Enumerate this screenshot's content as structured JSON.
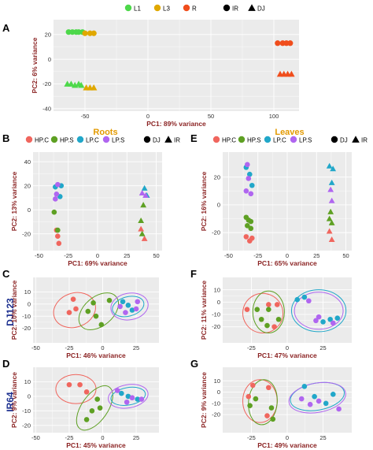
{
  "colors": {
    "L1": "#4dd84a",
    "L3": "#e0a800",
    "R": "#f04d1c",
    "HP.C": "#f0665e",
    "HP.S": "#5ea023",
    "LP.C": "#21a7c9",
    "LP.S": "#b066f0",
    "panel_bg": "#ebebeb",
    "grid": "#ffffff",
    "axis_title": "#8b2323",
    "group_title": "#e39a00",
    "side_label": "#1b2f8f"
  },
  "legend_A": {
    "items": [
      {
        "key": "L1",
        "label": "L1",
        "shape": "circle"
      },
      {
        "key": "L3",
        "label": "L3",
        "shape": "circle"
      },
      {
        "key": "R",
        "label": "R",
        "shape": "circle"
      },
      {
        "key": "IR",
        "label": "IR",
        "shape": "circle"
      },
      {
        "key": "DJ",
        "label": "DJ",
        "shape": "triangle"
      }
    ]
  },
  "legend_BE": {
    "items": [
      {
        "key": "HP.C",
        "label": "HP.C",
        "shape": "circle"
      },
      {
        "key": "HP.S",
        "label": "HP.S",
        "shape": "circle"
      },
      {
        "key": "LP.C",
        "label": "LP.C",
        "shape": "circle"
      },
      {
        "key": "LP.S",
        "label": "LP.S",
        "shape": "circle"
      },
      {
        "key": "DJ",
        "label": "DJ",
        "shape": "circle"
      },
      {
        "key": "IR",
        "label": "IR",
        "shape": "triangle"
      }
    ]
  },
  "groups": {
    "roots": "Roots",
    "leaves": "Leaves"
  },
  "side_labels": {
    "dj123": "DJ123",
    "ir64": "IR64"
  },
  "chart_data": [
    {
      "panel": "A",
      "type": "scatter",
      "xlabel": "PC1: 89% variance",
      "ylabel": "PC2: 6% variance",
      "xlim": [
        -75,
        120
      ],
      "ylim": [
        -42,
        32
      ],
      "xticks": [
        -50,
        0,
        50,
        100
      ],
      "yticks": [
        -40,
        -20,
        0,
        20
      ],
      "series": [
        {
          "name": "L1",
          "points": [
            [
              -63,
              22,
              "c"
            ],
            [
              -60,
              22,
              "c"
            ],
            [
              -57,
              22,
              "c"
            ],
            [
              -55,
              22,
              "c"
            ],
            [
              -52,
              22,
              "c"
            ],
            [
              -64,
              -20,
              "t"
            ],
            [
              -61,
              -20,
              "t"
            ],
            [
              -58,
              -21,
              "t"
            ],
            [
              -55,
              -20,
              "t"
            ],
            [
              -53,
              -21,
              "t"
            ]
          ]
        },
        {
          "name": "L3",
          "points": [
            [
              -50,
              21,
              "c"
            ],
            [
              -46,
              21,
              "c"
            ],
            [
              -43,
              21,
              "c"
            ],
            [
              -49,
              -23,
              "t"
            ],
            [
              -46,
              -23,
              "t"
            ],
            [
              -43,
              -23,
              "t"
            ]
          ]
        },
        {
          "name": "R",
          "points": [
            [
              103,
              13,
              "c"
            ],
            [
              107,
              13,
              "c"
            ],
            [
              110,
              13,
              "c"
            ],
            [
              113,
              13,
              "c"
            ],
            [
              105,
              -12,
              "t"
            ],
            [
              108,
              -12,
              "t"
            ],
            [
              111,
              -12,
              "t"
            ],
            [
              114,
              -12,
              "t"
            ]
          ]
        }
      ]
    },
    {
      "panel": "B",
      "type": "scatter",
      "xlabel": "PC1: 69% variance",
      "ylabel": "PC2: 13% variance",
      "xlim": [
        -55,
        55
      ],
      "ylim": [
        -34,
        48
      ],
      "xticks": [
        -50,
        -25,
        0,
        25,
        50
      ],
      "yticks": [
        -20,
        0,
        20,
        40
      ],
      "series": [
        {
          "name": "HP.C",
          "points": [
            [
              -35,
              -17,
              "c"
            ],
            [
              -34,
              -22,
              "c"
            ],
            [
              -33,
              -28,
              "c"
            ],
            [
              37,
              -16,
              "t"
            ],
            [
              40,
              -24,
              "t"
            ]
          ]
        },
        {
          "name": "HP.S",
          "points": [
            [
              -37,
              -2,
              "c"
            ],
            [
              -34,
              -17,
              "c"
            ],
            [
              37,
              -9,
              "t"
            ],
            [
              38,
              -20,
              "t"
            ],
            [
              39,
              4,
              "t"
            ]
          ]
        },
        {
          "name": "LP.C",
          "points": [
            [
              -36,
              19,
              "c"
            ],
            [
              -31,
              20,
              "c"
            ],
            [
              -32,
              11,
              "c"
            ],
            [
              40,
              18,
              "t"
            ],
            [
              42,
              12,
              "t"
            ]
          ]
        },
        {
          "name": "LP.S",
          "points": [
            [
              -34,
              21,
              "c"
            ],
            [
              -35,
              13,
              "c"
            ],
            [
              -36,
              9,
              "c"
            ],
            [
              38,
              14,
              "t"
            ],
            [
              41,
              12,
              "t"
            ]
          ]
        }
      ]
    },
    {
      "panel": "E",
      "type": "scatter",
      "xlabel": "PC1: 65% variance",
      "ylabel": "PC2: 16% variance",
      "xlim": [
        -55,
        55
      ],
      "ylim": [
        -33,
        38
      ],
      "xticks": [
        -50,
        -25,
        0,
        25,
        50
      ],
      "yticks": [
        -20,
        0,
        20
      ],
      "series": [
        {
          "name": "HP.C",
          "points": [
            [
              -35,
              -23,
              "c"
            ],
            [
              -32,
              -26,
              "c"
            ],
            [
              -30,
              -24,
              "c"
            ],
            [
              36,
              -19,
              "t"
            ],
            [
              38,
              -25,
              "t"
            ]
          ]
        },
        {
          "name": "HP.S",
          "points": [
            [
              -35,
              -9,
              "c"
            ],
            [
              -33,
              -11,
              "c"
            ],
            [
              -31,
              -12,
              "c"
            ],
            [
              -34,
              -15,
              "c"
            ],
            [
              -31,
              -17,
              "c"
            ],
            [
              36,
              -10,
              "t"
            ],
            [
              38,
              -13,
              "t"
            ],
            [
              37,
              -5,
              "t"
            ]
          ]
        },
        {
          "name": "LP.C",
          "points": [
            [
              -35,
              27,
              "c"
            ],
            [
              -32,
              22,
              "c"
            ],
            [
              -30,
              14,
              "c"
            ],
            [
              36,
              28,
              "t"
            ],
            [
              39,
              26,
              "t"
            ],
            [
              38,
              16,
              "t"
            ]
          ]
        },
        {
          "name": "LP.S",
          "points": [
            [
              -34,
              29,
              "c"
            ],
            [
              -33,
              19,
              "c"
            ],
            [
              -35,
              10,
              "c"
            ],
            [
              -31,
              8,
              "c"
            ],
            [
              37,
              11,
              "t"
            ],
            [
              38,
              3,
              "t"
            ]
          ]
        }
      ]
    },
    {
      "panel": "C",
      "type": "scatter",
      "xlabel": "PC1: 46% variance",
      "ylabel": "PC2: 10% variance",
      "xlim": [
        -52,
        42
      ],
      "ylim": [
        -32,
        22
      ],
      "xticks": [
        -50,
        -25,
        0,
        25
      ],
      "yticks": [
        -20,
        -10,
        0,
        10
      ],
      "series": [
        {
          "name": "HP.C",
          "points": [
            [
              -22,
              4
            ],
            [
              -20,
              -4
            ],
            [
              -25,
              -7
            ]
          ]
        },
        {
          "name": "HP.S",
          "points": [
            [
              -7,
              1
            ],
            [
              -1,
              -17
            ],
            [
              5,
              3
            ],
            [
              -11,
              -6
            ],
            [
              -5,
              -10
            ]
          ]
        },
        {
          "name": "LP.C",
          "points": [
            [
              15,
              2
            ],
            [
              19,
              -1
            ],
            [
              22,
              -5
            ]
          ]
        },
        {
          "name": "LP.S",
          "points": [
            [
              13,
              -2
            ],
            [
              17,
              -7
            ],
            [
              25,
              -4
            ],
            [
              26,
              2
            ]
          ]
        }
      ],
      "ellipses": [
        {
          "name": "HP.C",
          "cx": -21,
          "cy": -5,
          "rx": 16,
          "ry": 14,
          "rot": -20
        },
        {
          "name": "HP.S",
          "cx": -3,
          "cy": -6,
          "rx": 17,
          "ry": 12,
          "rot": -40
        },
        {
          "name": "LP.C",
          "cx": 19,
          "cy": -2,
          "rx": 12,
          "ry": 8,
          "rot": -15
        },
        {
          "name": "LP.S",
          "cx": 20,
          "cy": -2,
          "rx": 14,
          "ry": 11,
          "rot": -10
        }
      ]
    },
    {
      "panel": "F",
      "type": "scatter",
      "xlabel": "PC1: 47% variance",
      "ylabel": "PC2: 11% variance",
      "xlim": [
        -45,
        45
      ],
      "ylim": [
        -33,
        20
      ],
      "xticks": [
        -25,
        0,
        25
      ],
      "yticks": [
        -20,
        -10,
        0,
        10
      ],
      "series": [
        {
          "name": "HP.C",
          "points": [
            [
              -28,
              -6
            ],
            [
              -13,
              -2
            ],
            [
              -7,
              -2
            ],
            [
              -9,
              -20
            ]
          ]
        },
        {
          "name": "HP.S",
          "points": [
            [
              -18,
              -14
            ],
            [
              -13,
              -6
            ],
            [
              -6,
              -14
            ],
            [
              -21,
              -6
            ],
            [
              -14,
              -19
            ]
          ]
        },
        {
          "name": "LP.C",
          "points": [
            [
              7,
              2
            ],
            [
              12,
              4
            ],
            [
              25,
              -16
            ],
            [
              30,
              -14
            ],
            [
              35,
              -13
            ]
          ]
        },
        {
          "name": "LP.S",
          "points": [
            [
              15,
              1
            ],
            [
              20,
              -15
            ],
            [
              22,
              -12
            ],
            [
              32,
              -17
            ]
          ]
        }
      ],
      "ellipses": [
        {
          "name": "HP.C",
          "cx": -17,
          "cy": -9,
          "rx": 14,
          "ry": 16,
          "rot": 10
        },
        {
          "name": "HP.S",
          "cx": -13,
          "cy": -8,
          "rx": 11,
          "ry": 17,
          "rot": 0
        },
        {
          "name": "LP.C",
          "cx": 22,
          "cy": -7,
          "rx": 19,
          "ry": 17,
          "rot": 0
        },
        {
          "name": "LP.S",
          "cx": 22,
          "cy": -7,
          "rx": 17,
          "ry": 15,
          "rot": 0
        }
      ]
    },
    {
      "panel": "D",
      "type": "scatter",
      "xlabel": "PC1: 45% variance",
      "ylabel": "PC2: 9% variance",
      "xlim": [
        -52,
        42
      ],
      "ylim": [
        -25,
        20
      ],
      "xticks": [
        -50,
        -25,
        0,
        25
      ],
      "yticks": [
        -20,
        -10,
        0,
        10
      ],
      "series": [
        {
          "name": "HP.C",
          "points": [
            [
              -25,
              8
            ],
            [
              -17,
              8
            ],
            [
              -12,
              3
            ]
          ]
        },
        {
          "name": "HP.S",
          "points": [
            [
              -2,
              -8
            ],
            [
              -12,
              -16
            ],
            [
              -8,
              -10
            ],
            [
              -4,
              -2
            ]
          ]
        },
        {
          "name": "LP.C",
          "points": [
            [
              14,
              2
            ],
            [
              19,
              0
            ],
            [
              26,
              -2
            ]
          ]
        },
        {
          "name": "LP.S",
          "points": [
            [
              11,
              4
            ],
            [
              18,
              -4
            ],
            [
              22,
              -1
            ],
            [
              29,
              -2
            ]
          ]
        }
      ],
      "ellipses": [
        {
          "name": "HP.C",
          "cx": -20,
          "cy": 5,
          "rx": 15,
          "ry": 10,
          "rot": 0
        },
        {
          "name": "HP.S",
          "cx": -6,
          "cy": -8,
          "rx": 19,
          "ry": 9,
          "rot": -55
        },
        {
          "name": "LP.C",
          "cx": 19,
          "cy": 0,
          "rx": 13,
          "ry": 6,
          "rot": -10
        },
        {
          "name": "LP.S",
          "cx": 19,
          "cy": 0,
          "rx": 15,
          "ry": 8,
          "rot": -10
        }
      ]
    },
    {
      "panel": "G",
      "type": "scatter",
      "xlabel": "PC1: 49% variance",
      "ylabel": "PC2: 9% variance",
      "xlim": [
        -45,
        45
      ],
      "ylim": [
        -36,
        22
      ],
      "xticks": [
        -25,
        0,
        25
      ],
      "yticks": [
        -20,
        -10,
        0,
        10
      ],
      "series": [
        {
          "name": "HP.C",
          "points": [
            [
              -24,
              6
            ],
            [
              -13,
              4
            ],
            [
              -14,
              -21
            ],
            [
              -27,
              -4
            ]
          ]
        },
        {
          "name": "HP.S",
          "points": [
            [
              -22,
              -6
            ],
            [
              -11,
              -14
            ],
            [
              -10,
              -24
            ],
            [
              -26,
              -12
            ]
          ]
        },
        {
          "name": "LP.C",
          "points": [
            [
              12,
              5
            ],
            [
              19,
              -4
            ],
            [
              27,
              -10
            ],
            [
              32,
              -2
            ]
          ]
        },
        {
          "name": "LP.S",
          "points": [
            [
              10,
              -6
            ],
            [
              16,
              -11
            ],
            [
              22,
              -8
            ],
            [
              36,
              -15
            ]
          ]
        }
      ],
      "ellipses": [
        {
          "name": "HP.C",
          "cx": -19,
          "cy": -8,
          "rx": 12,
          "ry": 19,
          "rot": 0
        },
        {
          "name": "HP.S",
          "cx": -17,
          "cy": -9,
          "rx": 10,
          "ry": 20,
          "rot": 5
        },
        {
          "name": "LP.C",
          "cx": 21,
          "cy": -4,
          "rx": 19,
          "ry": 12,
          "rot": -10
        },
        {
          "name": "LP.S",
          "cx": 21,
          "cy": -5,
          "rx": 20,
          "ry": 13,
          "rot": -10
        }
      ]
    }
  ]
}
